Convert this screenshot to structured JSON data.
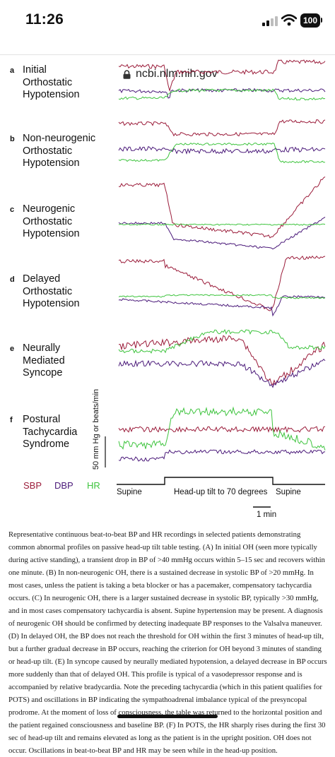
{
  "status_bar": {
    "time": "11:26",
    "battery": "100"
  },
  "browser": {
    "url": "ncbi.nlm.nih.gov"
  },
  "figure": {
    "panels": [
      {
        "letter": "a",
        "lines": [
          "Initial",
          "Orthostatic",
          "Hypotension"
        ]
      },
      {
        "letter": "b",
        "lines": [
          "Non-neurogenic",
          "Orthostatic",
          "Hypotension"
        ]
      },
      {
        "letter": "c",
        "lines": [
          "Neurogenic",
          "Orthostatic",
          "Hypotension"
        ]
      },
      {
        "letter": "d",
        "lines": [
          "Delayed",
          "Orthostatic",
          "Hypotension"
        ]
      },
      {
        "letter": "e",
        "lines": [
          "Neurally",
          "Mediated",
          "Syncope"
        ]
      },
      {
        "letter": "f",
        "lines": [
          "Postural",
          "Tachycardia",
          "Syndrome"
        ]
      }
    ],
    "scale_bar_label": "50 mm Hg or beats/min",
    "legend": [
      {
        "label": "SBP",
        "color": "#9b1c3a"
      },
      {
        "label": "DBP",
        "color": "#4b1a7a"
      },
      {
        "label": "HR",
        "color": "#3ec43e"
      }
    ],
    "timeline": {
      "supine_left": "Supine",
      "tilt": "Head-up tilt to 70 degrees",
      "supine_right": "Supine",
      "time_scale": "1 min"
    }
  },
  "caption": "Representative continuous beat-to-beat BP and HR recordings in selected patients demonstrating common abnormal profiles on passive head-up tilt table testing. (A) In initial OH (seen more typically during active standing), a transient drop in BP of >40 mmHg occurs within 5–15 sec and recovers within one minute. (B) In non-neurogenic OH, there is a sustained decrease in systolic BP of >20 mmHg. In most cases, unless the patient is taking a beta blocker or has a pacemaker, compensatory tachycardia occurs. (C) In neurogenic OH, there is a larger sustained decrease in systolic BP, typically >30 mmHg, and in most cases compensatory tachycardia is absent. Supine hypertension may be present. A diagnosis of neurogenic OH should be confirmed by detecting inadequate BP responses to the Valsalva maneuver. (D) In delayed OH, the BP does not reach the threshold for OH within the first 3 minutes of head-up tilt, but a further gradual decrease in BP occurs, reaching the criterion for OH beyond 3 minutes of standing or head-up tilt. (E) In syncope caused by neurally mediated hypotension, a delayed decrease in BP occurs more suddenly than that of delayed OH. This profile is typical of a vasodepressor response and is accompanied by relative bradycardia. Note the preceding tachycardia (which in this patient qualifies for POTS) and oscillations in BP indicating the sympathoadrenal imbalance typical of the presyncopal prodrome. At the moment of loss of consciousness, the table was returned to the horizontal position and the patient regained consciousness and baseline BP. (F) In POTS, the HR sharply rises during the first 30 sec of head-up tilt and remains elevated as long as the patient is in the upright position. OH does not occur. Oscillations in beat-to-beat BP and HR may be seen while in the head-up position."
}
